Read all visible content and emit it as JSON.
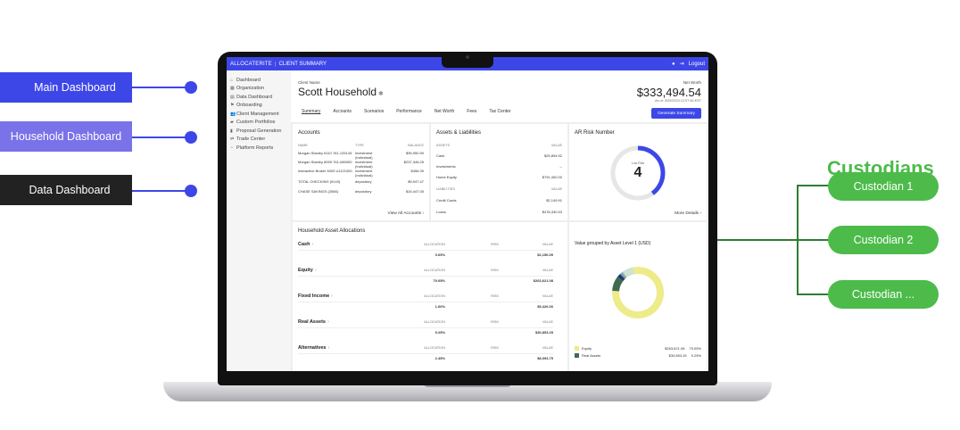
{
  "labels": {
    "main_dashboard": "Main Dashboard",
    "household_dashboard": "Household Dashboard",
    "data_dashboard": "Data Dashboard"
  },
  "custodians": {
    "title": "Custodians",
    "items": [
      "Custodian 1",
      "Custodian 2",
      "Custodian ..."
    ]
  },
  "app": {
    "brand": "ALLOCATERITE",
    "section": "CLIENT SUMMARY",
    "logout": "Logout",
    "sidebar": [
      {
        "icon": "home-icon",
        "glyph": "⌂",
        "label": "Dashboard"
      },
      {
        "icon": "building-icon",
        "glyph": "▦",
        "label": "Organization"
      },
      {
        "icon": "database-icon",
        "glyph": "▤",
        "label": "Data Dashboard"
      },
      {
        "icon": "onboarding-icon",
        "glyph": "⚑",
        "label": "Onboarding"
      },
      {
        "icon": "users-icon",
        "glyph": "👥",
        "label": "Client Management"
      },
      {
        "icon": "portfolio-icon",
        "glyph": "▰",
        "label": "Custom Portfolios"
      },
      {
        "icon": "document-icon",
        "glyph": "▮",
        "label": "Proposal Generation"
      },
      {
        "icon": "trade-icon",
        "glyph": "⇄",
        "label": "Trade Center"
      },
      {
        "icon": "reports-icon",
        "glyph": "◔",
        "label": "Platform Reports"
      }
    ],
    "client_name_label": "Client Name",
    "client_name": "Scott Household",
    "net_worth_label": "Net Worth",
    "net_worth": "$333,494.54",
    "as_of": "As of: 3/20/2023 12:07:45 EST",
    "tabs": [
      "Summary",
      "Accounts",
      "Scenarios",
      "Performance",
      "Net Worth",
      "Fees",
      "Tax Center"
    ],
    "generate_button": "Generate Summary",
    "accounts": {
      "title": "Accounts",
      "headers": [
        "NAME",
        "TYPE",
        "BALANCE"
      ],
      "rows": [
        {
          "name": "Morgan Stanley 6110 761-129143",
          "type": "investment (Individual)",
          "balance": "$95,950.90"
        },
        {
          "name": "Morgan Stanley 8009 761-080000",
          "type": "investment (Individual)",
          "balance": "$237,346.25"
        },
        {
          "name": "Interactive Broker 6393 U1121000",
          "type": "investment (Individual)",
          "balance": "$456.39"
        },
        {
          "name": "TOTAL CHECKING (9143)",
          "type": "depository",
          "balance": "$9,947.47"
        },
        {
          "name": "CHASE SAVINGS (2566)",
          "type": "depository",
          "balance": "$15,447.05"
        }
      ],
      "view_all": "View All Accounts"
    },
    "assets_liabilities": {
      "title": "Assets & Liabilities",
      "assets_header": [
        "ASSETS",
        "VALUE"
      ],
      "assets": [
        {
          "name": "Cash",
          "value": "$25,894.52"
        },
        {
          "name": "Investments",
          "value": "--"
        },
        {
          "name": "Home Equity",
          "value": "$791,400.00"
        }
      ],
      "liabilities_header": [
        "LIABILITIES",
        "VALUE"
      ],
      "liabilities": [
        {
          "name": "Credit Cards",
          "value": "$2,149.91"
        },
        {
          "name": "Loans",
          "value": "$478,330.53"
        }
      ]
    },
    "risk": {
      "title": "AR Risk Number",
      "inner_label": "Low Risk",
      "value": "4",
      "fraction": 0.4,
      "more": "More Details"
    },
    "allocations": {
      "title": "Household Asset Allocations",
      "headers": [
        "ALLOCATION",
        "RISK",
        "VALUE"
      ],
      "rows": [
        {
          "name": "Cash",
          "allocation": "0.65%",
          "value": "$2,156.09"
        },
        {
          "name": "Equity",
          "allocation": "79.05%",
          "value": "$263,621.08"
        },
        {
          "name": "Fixed Income",
          "allocation": "1.60%",
          "value": "$5,326.00"
        },
        {
          "name": "Real Assets",
          "allocation": "9.25%",
          "value": "$30,853.25"
        },
        {
          "name": "Alternatives",
          "allocation": "2.45%",
          "value": "$8,093.75"
        }
      ]
    },
    "grouped": {
      "title": "Value grouped by Asset Level 1 (USD)",
      "legend": [
        {
          "name": "Equity",
          "value": "$263,621.08",
          "pct": "79.05%",
          "color": "#eeeb8a"
        },
        {
          "name": "Real Assets",
          "value": "$30,853.25",
          "pct": "9.25%",
          "color": "#3f6b4f"
        }
      ],
      "donut": [
        {
          "name": "Equity",
          "fraction": 0.7905,
          "color": "#eeeb8a"
        },
        {
          "name": "Real Assets",
          "fraction": 0.0925,
          "color": "#3f6b4f"
        },
        {
          "name": "Alternatives",
          "fraction": 0.0245,
          "color": "#1f3f66"
        },
        {
          "name": "Fixed Income",
          "fraction": 0.016,
          "color": "#7aa0c8"
        },
        {
          "name": "Cash",
          "fraction": 0.0065,
          "color": "#a8c7a0"
        },
        {
          "name": "Other",
          "fraction": 0.07,
          "color": "#cfe3d0"
        }
      ]
    }
  },
  "colors": {
    "primary": "#3d47e8",
    "household": "#7a72e8",
    "dark": "#222222",
    "custodian_green": "#4cbb4a",
    "connector_green": "#2e7d32"
  }
}
